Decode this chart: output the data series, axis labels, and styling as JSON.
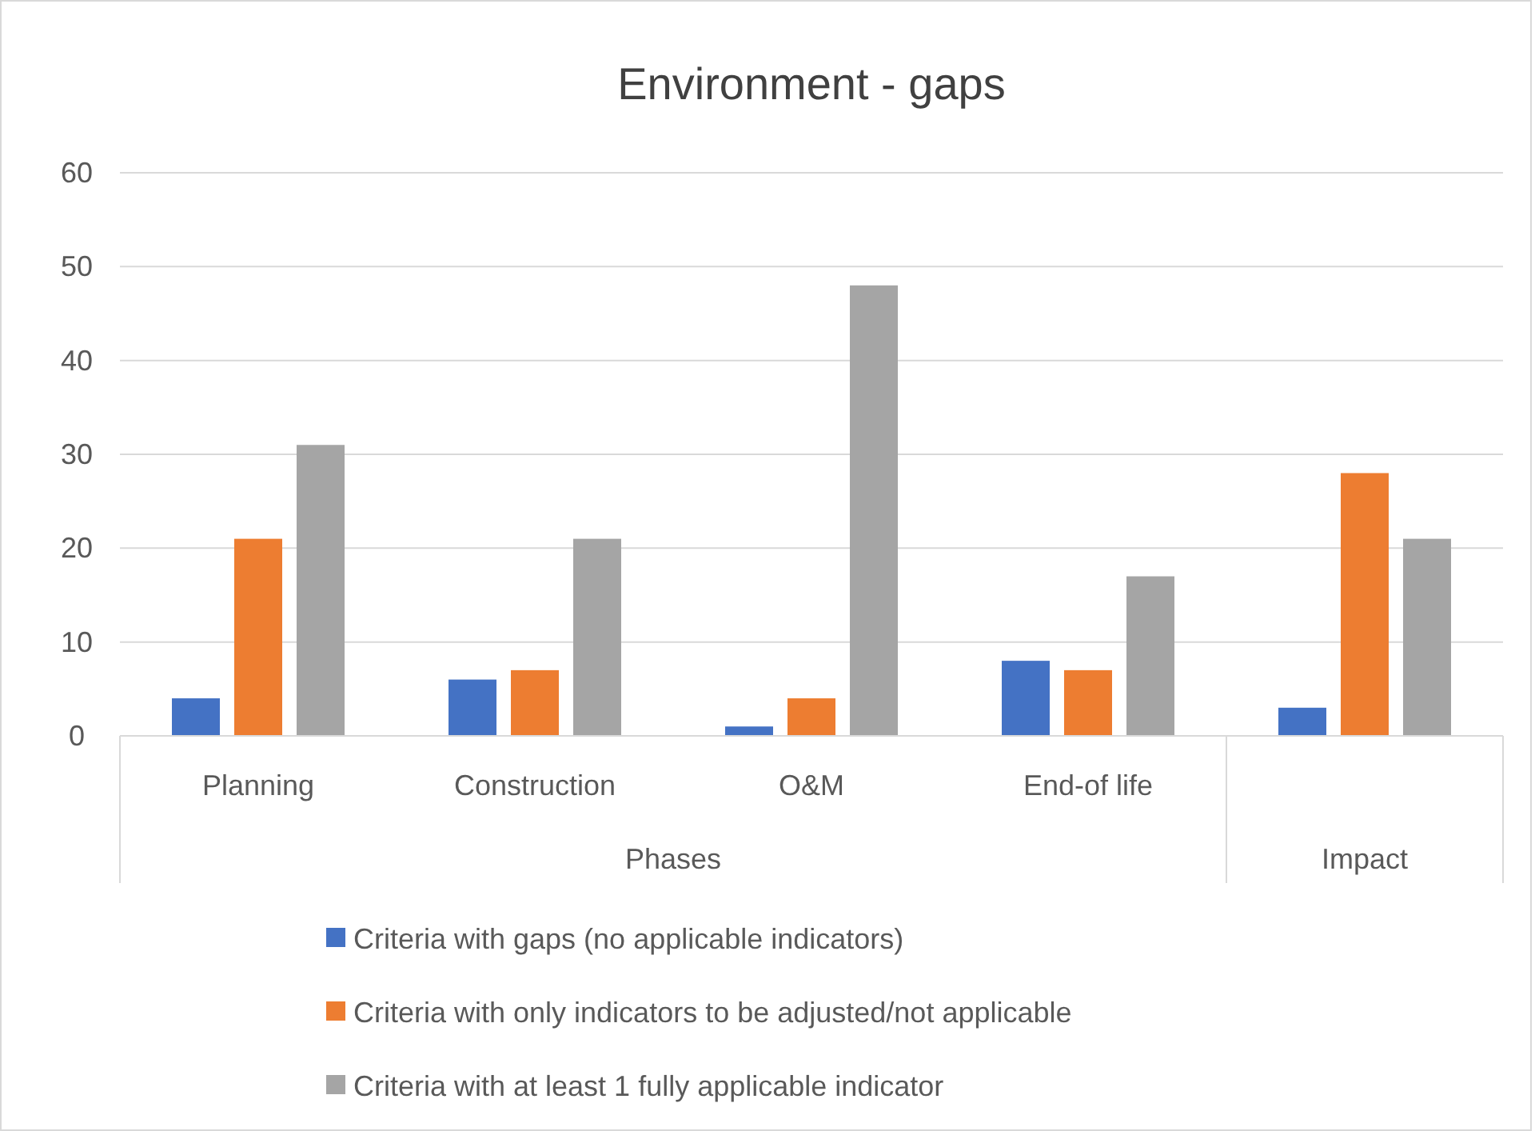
{
  "chart_data": {
    "type": "bar",
    "title": "Environment - gaps",
    "categories": [
      "Planning",
      "Construction",
      "O&M",
      "End-of life",
      null
    ],
    "series": [
      {
        "name": "Criteria with gaps (no applicable indicators)",
        "color": "#4472c4",
        "values": [
          4,
          6,
          1,
          8,
          3
        ]
      },
      {
        "name": "Criteria with only indicators to be adjusted/not applicable",
        "color": "#ed7d31",
        "values": [
          21,
          7,
          4,
          7,
          28
        ]
      },
      {
        "name": "Criteria with at least 1 fully applicable indicator",
        "color": "#a5a5a5",
        "values": [
          31,
          21,
          48,
          17,
          21
        ]
      }
    ],
    "annotations": [
      "Phases",
      "Impact"
    ],
    "ylim": [
      0,
      60
    ],
    "yticks": [
      0,
      10,
      20,
      30,
      40,
      50,
      60
    ],
    "grid": "y",
    "legend": "bottom"
  }
}
